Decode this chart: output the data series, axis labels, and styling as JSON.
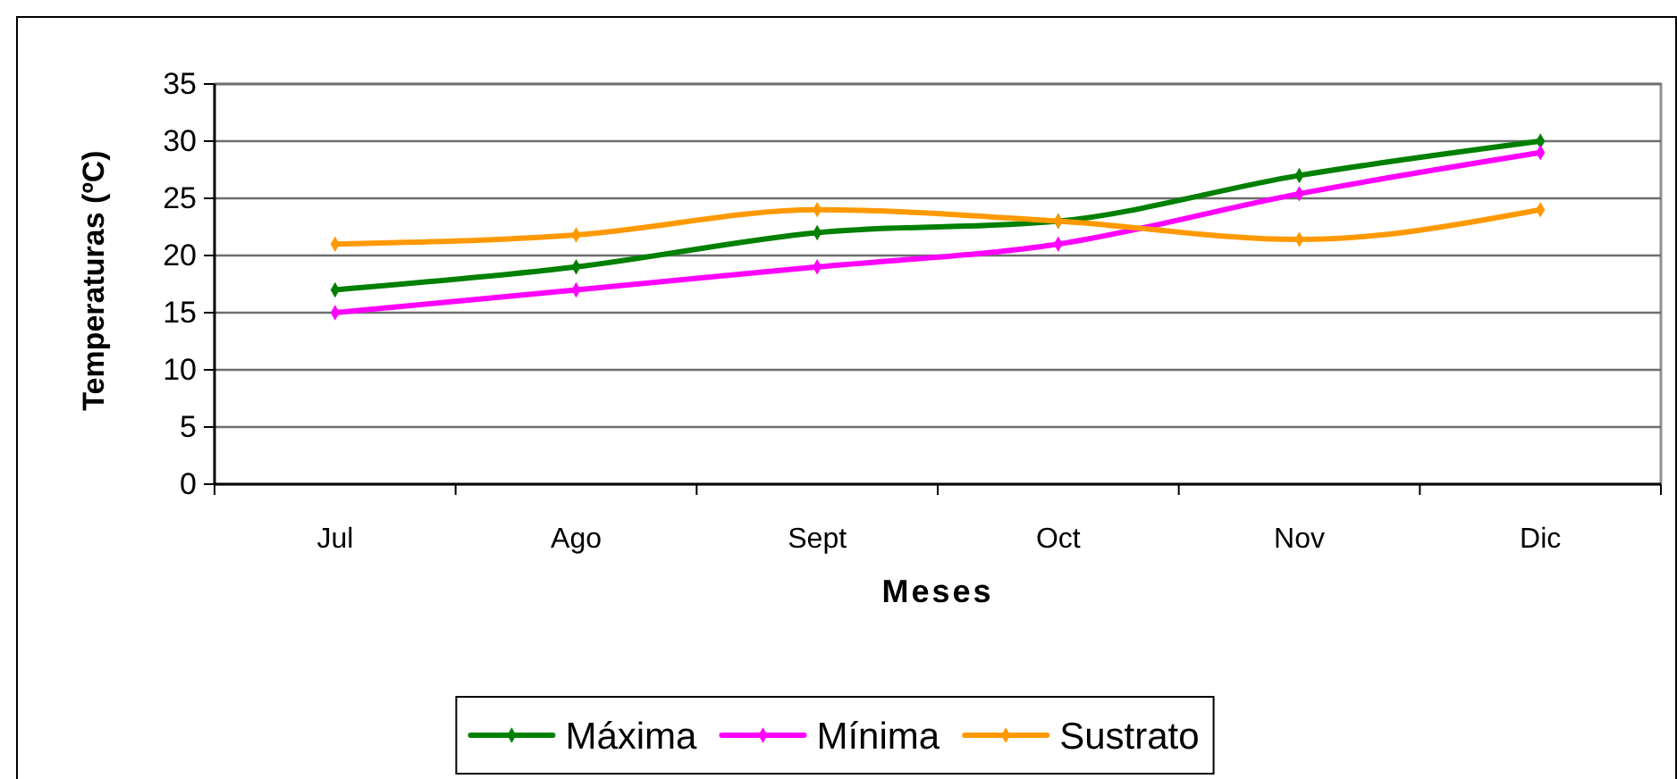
{
  "chart_data": {
    "type": "line",
    "xlabel": "Meses",
    "ylabel": "Temperaturas (ºC)",
    "categories": [
      "Jul",
      "Ago",
      "Sept",
      "Oct",
      "Nov",
      "Dic"
    ],
    "series": [
      {
        "name": "Máxima",
        "color": "#008000",
        "values": [
          17,
          19,
          22,
          23,
          27,
          30
        ]
      },
      {
        "name": "Mínima",
        "color": "#ff00ff",
        "values": [
          15,
          17,
          19,
          21,
          25.4,
          29
        ]
      },
      {
        "name": "Sustrato",
        "color": "#ff9900",
        "values": [
          21,
          21.8,
          24,
          23,
          21.4,
          24
        ]
      }
    ],
    "ylim": [
      0,
      35
    ],
    "yticks": [
      0,
      5,
      10,
      15,
      20,
      25,
      30,
      35
    ],
    "grid": "y",
    "legend": "bottom",
    "marker": "diamond"
  }
}
